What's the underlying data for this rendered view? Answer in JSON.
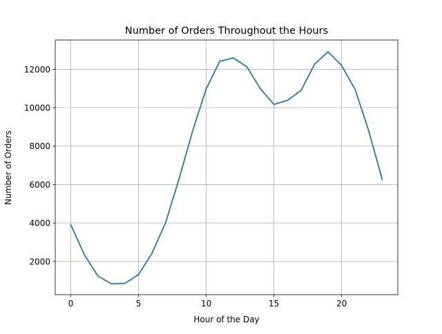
{
  "chart_data": {
    "type": "line",
    "title": "Number of Orders Throughout the Hours",
    "xlabel": "Hour of the Day",
    "ylabel": "Number of Orders",
    "xlim": [
      -1.15,
      24.15
    ],
    "ylim": [
      270,
      13520
    ],
    "xticks": [
      0,
      5,
      10,
      15,
      20
    ],
    "yticks": [
      2000,
      4000,
      6000,
      8000,
      10000,
      12000
    ],
    "grid": true,
    "line_color": "#1f77b4",
    "series": [
      {
        "x": [
          0,
          1,
          2,
          3,
          4,
          5,
          6,
          7,
          8,
          9,
          10,
          11,
          12,
          13,
          14,
          15,
          16,
          17,
          18,
          19,
          20,
          21,
          22,
          23
        ],
        "values": [
          3910,
          2350,
          1240,
          830,
          860,
          1320,
          2430,
          4020,
          6310,
          8800,
          10980,
          12410,
          12590,
          12130,
          10990,
          10170,
          10380,
          10890,
          12260,
          12910,
          12200,
          10950,
          8800,
          6260
        ]
      }
    ]
  }
}
